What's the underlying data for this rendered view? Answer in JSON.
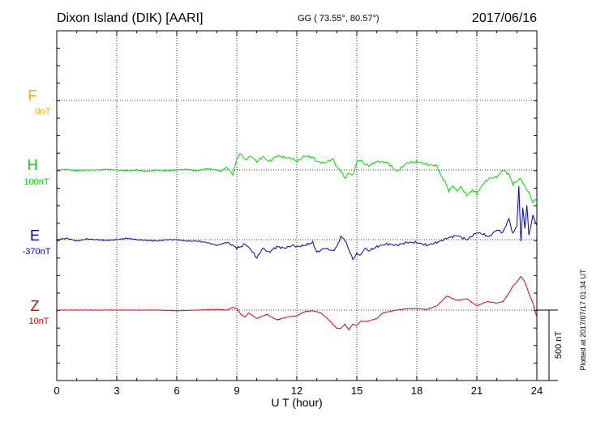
{
  "header": {
    "station": "Dixon Island (DIK)  [AARI]",
    "coords": "GG ( 73.55°,  80.57°)",
    "date": "2017/06/16"
  },
  "plotted_note": "Plotted at 2017/07/17 01:34 UT",
  "scale_label": "500 nT",
  "channels": [
    {
      "key": "F",
      "label": "F",
      "offset": "0nT",
      "color": "#ffaa00"
    },
    {
      "key": "H",
      "label": "H",
      "offset": "100nT",
      "color": "#00dd00"
    },
    {
      "key": "E",
      "label": "E",
      "offset": "-370nT",
      "color": "#0000dd"
    },
    {
      "key": "Z",
      "label": "Z",
      "offset": "10nT",
      "color": "#ee0000"
    }
  ],
  "chart_data": {
    "type": "line",
    "xlabel": "U T (hour)",
    "xlim": [
      0,
      24
    ],
    "xticks": [
      0,
      3,
      6,
      9,
      12,
      15,
      18,
      21,
      24
    ],
    "ylabel": "",
    "yunit": "nT",
    "scale_bar_nT": 500,
    "grid": true,
    "series": [
      {
        "name": "H",
        "color": "#00dd00",
        "baseline_nT": 100,
        "x": [
          0,
          0.5,
          1,
          1.5,
          2,
          2.5,
          3,
          3.5,
          4,
          4.5,
          5,
          5.5,
          6,
          6.5,
          7,
          7.5,
          8,
          8.2,
          8.5,
          8.8,
          9,
          9.2,
          9.4,
          9.7,
          10,
          10.3,
          10.6,
          11,
          11.4,
          11.8,
          12,
          12.4,
          12.8,
          13,
          13.4,
          13.8,
          14,
          14.2,
          14.4,
          14.6,
          14.8,
          15,
          15.2,
          15.4,
          15.6,
          16,
          16.5,
          17,
          17.5,
          18,
          18.5,
          19,
          19.2,
          19.4,
          19.6,
          19.8,
          20,
          20.2,
          20.5,
          20.8,
          21,
          21.3,
          21.6,
          22,
          22.3,
          22.6,
          22.8,
          23,
          23.2,
          23.4,
          23.6,
          23.8,
          24
        ],
        "y": [
          0,
          5,
          -5,
          0,
          0,
          5,
          0,
          -5,
          0,
          -10,
          0,
          -5,
          0,
          5,
          -5,
          10,
          0,
          -10,
          20,
          -30,
          80,
          120,
          70,
          100,
          60,
          95,
          60,
          100,
          90,
          80,
          60,
          100,
          90,
          60,
          50,
          80,
          20,
          -5,
          -60,
          -20,
          -40,
          60,
          70,
          40,
          30,
          60,
          55,
          -10,
          50,
          60,
          40,
          30,
          -40,
          -80,
          -150,
          -110,
          -150,
          -120,
          -180,
          -140,
          -170,
          -100,
          -60,
          -50,
          0,
          -30,
          -100,
          -80,
          -60,
          -120,
          -160,
          -230,
          -200
        ]
      },
      {
        "name": "E",
        "color": "#0000dd",
        "baseline_nT": -370,
        "x": [
          0,
          0.5,
          1,
          1.5,
          2,
          2.5,
          3,
          3.5,
          4,
          4.5,
          5,
          5.5,
          6,
          6.5,
          7,
          7.5,
          8,
          8.5,
          8.8,
          9,
          9.2,
          9.4,
          9.7,
          10,
          10.3,
          10.6,
          11,
          11.4,
          11.8,
          12,
          12.4,
          12.8,
          13,
          13.4,
          13.8,
          14,
          14.2,
          14.4,
          14.6,
          14.8,
          15,
          15.2,
          15.4,
          15.6,
          16,
          16.5,
          17,
          17.5,
          18,
          18.5,
          19,
          19.5,
          20,
          20.5,
          21,
          21.3,
          21.6,
          22,
          22.3,
          22.6,
          22.8,
          23,
          23.1,
          23.2,
          23.3,
          23.4,
          23.5,
          23.6,
          23.8,
          24
        ],
        "y": [
          0,
          10,
          -10,
          5,
          0,
          -5,
          0,
          10,
          0,
          -5,
          -10,
          0,
          0,
          -10,
          -10,
          -20,
          -40,
          -20,
          -40,
          -60,
          -50,
          -30,
          -70,
          -130,
          -60,
          -90,
          -50,
          -60,
          -40,
          -50,
          -40,
          -20,
          -90,
          -60,
          -80,
          -50,
          20,
          0,
          -70,
          -140,
          -100,
          -110,
          -60,
          -80,
          -50,
          -30,
          -40,
          -20,
          -20,
          -40,
          -20,
          10,
          30,
          0,
          50,
          40,
          20,
          70,
          50,
          150,
          40,
          100,
          380,
          -10,
          220,
          80,
          250,
          30,
          170,
          100
        ]
      },
      {
        "name": "Z",
        "color": "#ee0000",
        "baseline_nT": 10,
        "x": [
          0,
          1,
          2,
          3,
          4,
          5,
          6,
          7,
          8,
          8.5,
          8.8,
          9,
          9.2,
          9.4,
          9.6,
          10,
          10.5,
          11,
          11.5,
          12,
          12.4,
          12.8,
          13.2,
          13.6,
          14,
          14.2,
          14.4,
          14.6,
          14.8,
          15,
          15.2,
          15.5,
          16,
          16.3,
          16.6,
          17,
          17.5,
          18,
          18.5,
          19,
          19.5,
          20,
          20.5,
          21,
          21.5,
          22,
          22.3,
          22.6,
          22.8,
          23,
          23.2,
          23.4,
          23.6,
          23.8,
          24
        ],
        "y": [
          0,
          0,
          0,
          0,
          0,
          0,
          -5,
          0,
          5,
          0,
          20,
          10,
          -30,
          -50,
          -20,
          -60,
          -30,
          -70,
          -50,
          -40,
          -10,
          -5,
          -20,
          -70,
          -130,
          -130,
          -100,
          -140,
          -100,
          -110,
          -80,
          -80,
          -60,
          -20,
          -10,
          0,
          10,
          10,
          5,
          30,
          100,
          70,
          80,
          30,
          60,
          50,
          60,
          120,
          170,
          200,
          240,
          200,
          120,
          50,
          -50
        ]
      }
    ]
  }
}
